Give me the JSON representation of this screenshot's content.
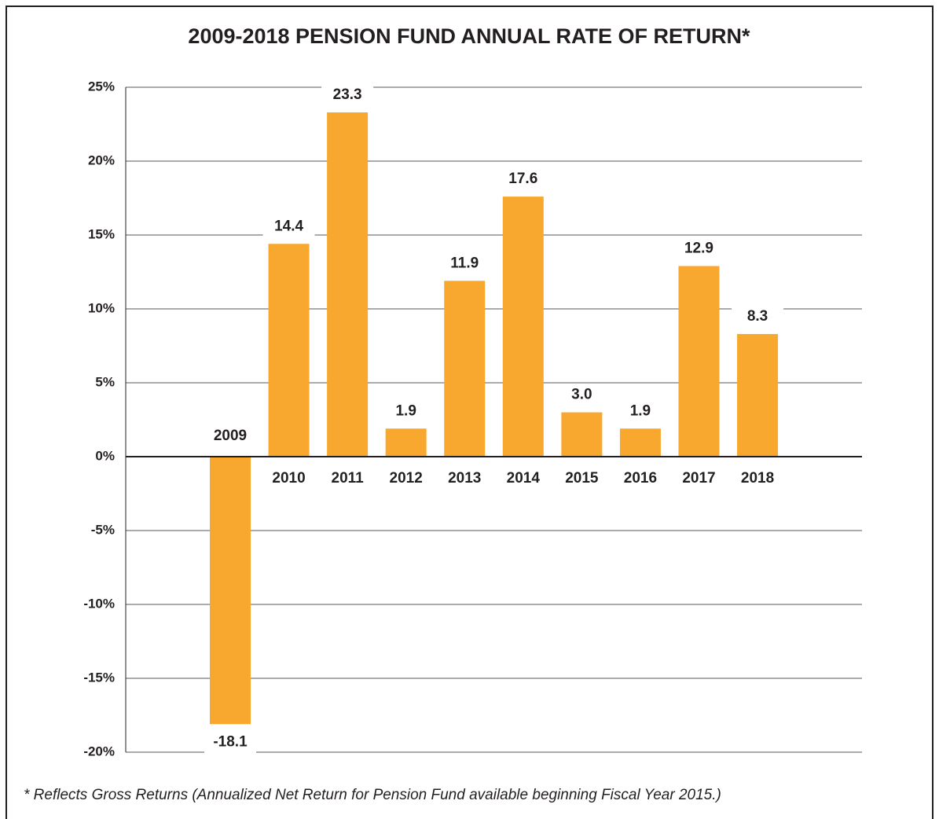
{
  "chart_data": {
    "type": "bar",
    "title": "2009-2018 PENSION FUND ANNUAL RATE OF RETURN*",
    "footnote": "* Reflects Gross Returns (Annualized Net Return for Pension Fund available beginning Fiscal Year 2015.)",
    "categories": [
      "2009",
      "2010",
      "2011",
      "2012",
      "2013",
      "2014",
      "2015",
      "2016",
      "2017",
      "2018"
    ],
    "values": [
      -18.1,
      14.4,
      23.3,
      1.9,
      11.9,
      17.6,
      3.0,
      1.9,
      12.9,
      8.3
    ],
    "value_labels": [
      "-18.1",
      "14.4",
      "23.3",
      "1.9",
      "11.9",
      "17.6",
      "3.0",
      "1.9",
      "12.9",
      "8.3"
    ],
    "color": "#f9a82f",
    "ylim": [
      -20,
      25
    ],
    "yticks": [
      {
        "value": -20,
        "label": "-20%"
      },
      {
        "value": -15,
        "label": "-15%"
      },
      {
        "value": -10,
        "label": "-10%"
      },
      {
        "value": -5,
        "label": "-5%"
      },
      {
        "value": 0,
        "label": "0%"
      },
      {
        "value": 5,
        "label": "5%"
      },
      {
        "value": 10,
        "label": "10%"
      },
      {
        "value": 15,
        "label": "15%"
      },
      {
        "value": 20,
        "label": "20%"
      },
      {
        "value": 25,
        "label": "25%"
      }
    ],
    "grid": true
  }
}
